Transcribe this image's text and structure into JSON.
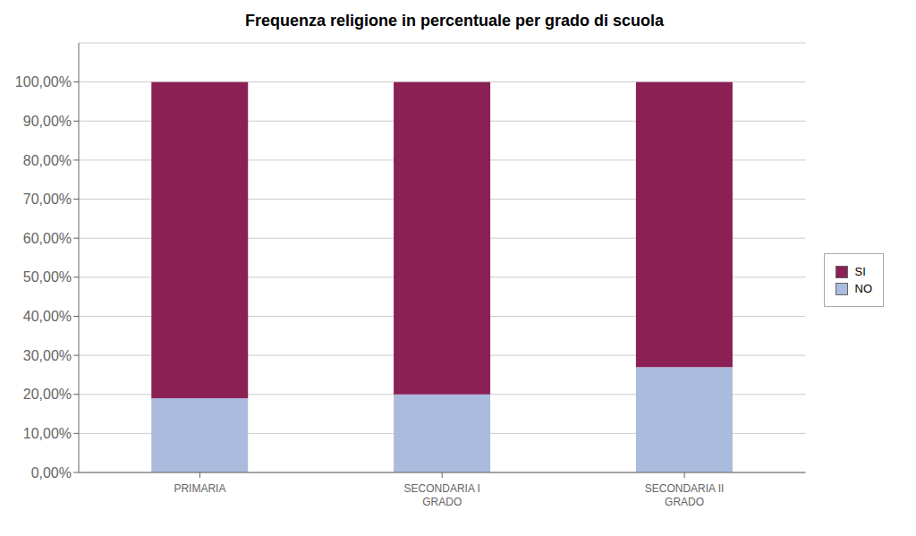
{
  "chart_data": {
    "type": "bar",
    "stacked": true,
    "title": "Frequenza religione in percentuale per grado di scuola",
    "categories": [
      "PRIMARIA",
      "SECONDARIA I\nGRADO",
      "SECONDARIA II\nGRADO"
    ],
    "series": [
      {
        "name": "NO",
        "color": "#AABBDD",
        "values": [
          0.19,
          0.2,
          0.27
        ]
      },
      {
        "name": "SI",
        "color": "#8B2055",
        "values": [
          0.81,
          0.8,
          0.73
        ]
      }
    ],
    "ylim": [
      0.0,
      1.1
    ],
    "yticks": [
      {
        "value": 0.0,
        "label": "0,00%"
      },
      {
        "value": 0.1,
        "label": "10,00%"
      },
      {
        "value": 0.2,
        "label": "20,00%"
      },
      {
        "value": 0.3,
        "label": "30,00%"
      },
      {
        "value": 0.4,
        "label": "40,00%"
      },
      {
        "value": 0.5,
        "label": "50,00%"
      },
      {
        "value": 0.6,
        "label": "60,00%"
      },
      {
        "value": 0.7,
        "label": "70,00%"
      },
      {
        "value": 0.8,
        "label": "80,00%"
      },
      {
        "value": 0.9,
        "label": "90,00%"
      },
      {
        "value": 1.0,
        "label": "100,00%"
      }
    ],
    "grid": true,
    "legend": "right"
  }
}
